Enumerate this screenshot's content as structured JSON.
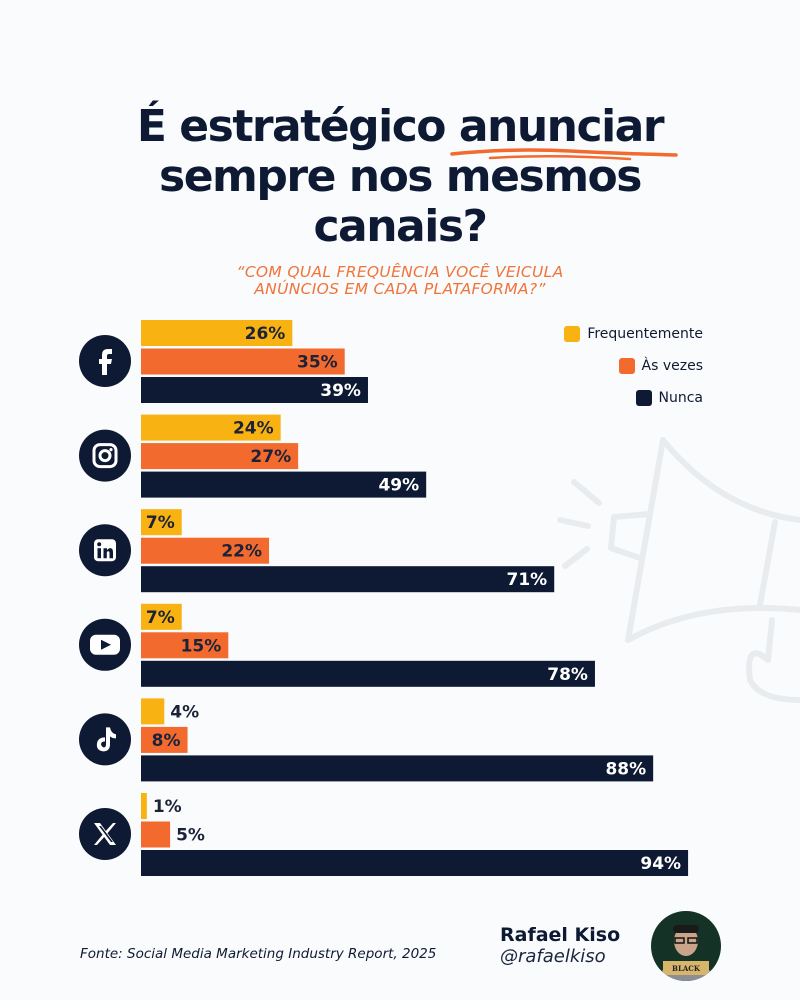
{
  "title": {
    "line1": "É estratégico anunciar",
    "line2": "sempre nos mesmos",
    "line3": "canais?"
  },
  "subtitle": {
    "line1": "“COM QUAL FREQUÊNCIA VOCÊ VEICULA",
    "line2": "ANÚNCIOS EM CADA PLATAFORMA?”"
  },
  "colors": {
    "frequentemente": "#f8b211",
    "as_vezes": "#f26a2e",
    "nunca": "#0e1a33",
    "accent": "#f0743a"
  },
  "chart_data": {
    "type": "bar",
    "orientation": "horizontal",
    "categories": [
      "facebook",
      "instagram",
      "linkedin",
      "youtube",
      "tiktok",
      "x"
    ],
    "category_icons": [
      "facebook-icon",
      "instagram-icon",
      "linkedin-icon",
      "youtube-icon",
      "tiktok-icon",
      "x-icon"
    ],
    "series": [
      {
        "name": "Frequentemente",
        "values": [
          26,
          24,
          7,
          7,
          4,
          1
        ],
        "color": "#f8b211"
      },
      {
        "name": "Às vezes",
        "values": [
          35,
          27,
          22,
          15,
          8,
          5
        ],
        "color": "#f26a2e"
      },
      {
        "name": "Nunca",
        "values": [
          39,
          49,
          71,
          78,
          88,
          94
        ],
        "color": "#0e1a33"
      }
    ],
    "unit": "%",
    "xlim": [
      0,
      100
    ],
    "grid": false,
    "legend": "top-right",
    "data_labels": true
  },
  "footer": {
    "source": "Fonte: Social Media Marketing Industry Report, 2025"
  },
  "author": {
    "name": "Rafael Kiso",
    "handle": "@rafaelkiso",
    "avatar_badge": "BLACK"
  }
}
